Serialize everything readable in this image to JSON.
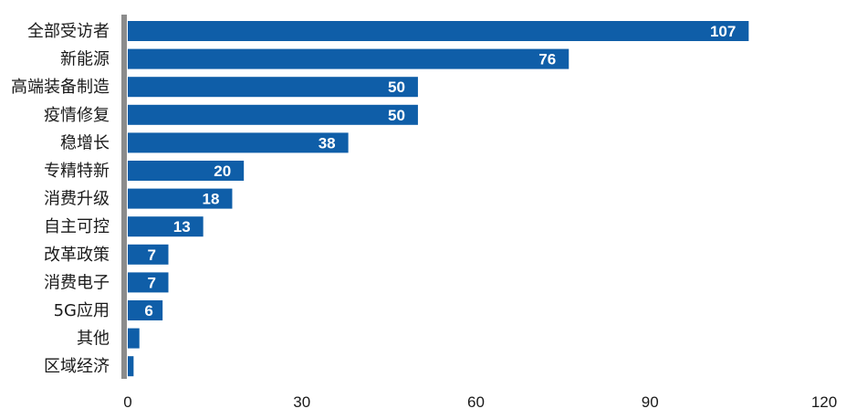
{
  "chart_data": {
    "type": "bar",
    "orientation": "horizontal",
    "categories": [
      "全部受访者",
      "新能源",
      "高端装备制造",
      "疫情修复",
      "稳增长",
      "专精特新",
      "消费升级",
      "自主可控",
      "改革政策",
      "消费电子",
      "5G应用",
      "其他",
      "区域经济"
    ],
    "values": [
      107,
      76,
      50,
      50,
      38,
      20,
      18,
      13,
      7,
      7,
      6,
      2,
      1
    ],
    "data_labels": [
      "107",
      "76",
      "50",
      "50",
      "38",
      "20",
      "18",
      "13",
      "7",
      "7",
      "6",
      "",
      ""
    ],
    "x_ticks": [
      "0",
      "30",
      "60",
      "90",
      "120"
    ],
    "xlim": [
      0,
      120
    ],
    "grid": false,
    "legend": "none",
    "colors": {
      "bar": "#0f5ea8",
      "axis": "#8c8c8c",
      "label": "#ffffff"
    }
  }
}
